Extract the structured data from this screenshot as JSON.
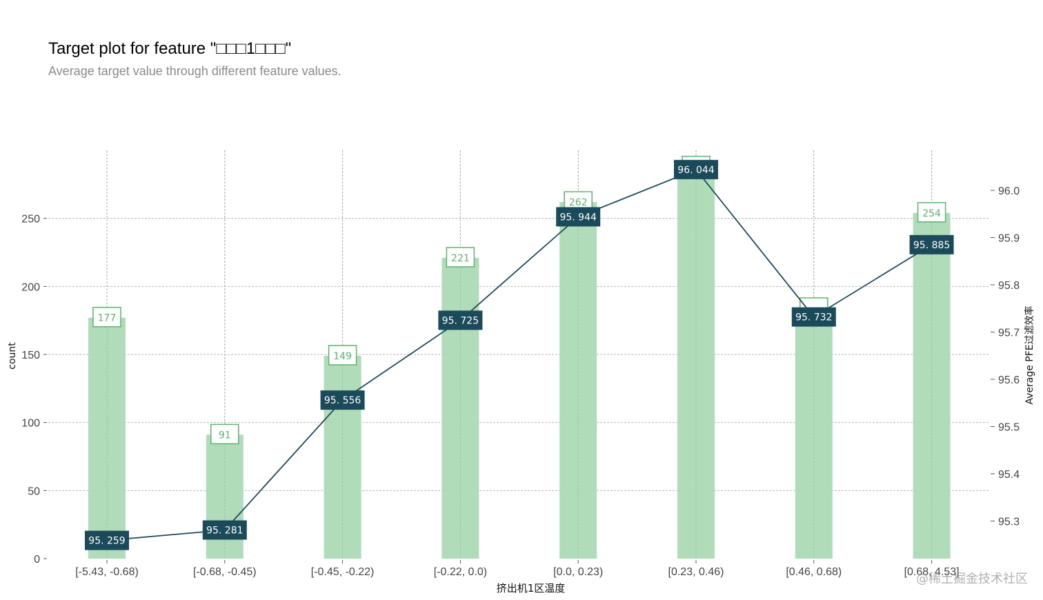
{
  "header": {
    "title": "Target plot for feature \"□□□1□□□\"",
    "subtitle": "Average target value through different feature values."
  },
  "watermark": "@稀土掘金技术社区",
  "chart_data": {
    "type": "bar",
    "categories": [
      "[-5.43, -0.68)",
      "[-0.68, -0.45)",
      "[-0.45, -0.22)",
      "[-0.22, 0.0)",
      "[0.0, 0.23)",
      "[0.23, 0.46)",
      "[0.46, 0.68)",
      "[0.68, 4.53]"
    ],
    "xlabel": "挤出机1区温度",
    "grid": true,
    "series": [
      {
        "type": "bar",
        "axis": "left",
        "values": [
          177,
          91,
          149,
          221,
          262,
          288,
          184,
          254
        ],
        "labels": [
          "177",
          "91",
          "149",
          "221",
          "262",
          "",
          "",
          "254"
        ],
        "color": "#acdab6",
        "label_color": "#5cb36c"
      },
      {
        "type": "line",
        "axis": "right",
        "values": [
          95.259,
          95.281,
          95.556,
          95.725,
          95.944,
          96.044,
          95.732,
          95.885
        ],
        "labels": [
          "95. 259",
          "95. 281",
          "95. 556",
          "95. 725",
          "95. 944",
          "96. 044",
          "95. 732",
          "95. 885"
        ],
        "color": "#1b4a5a"
      }
    ],
    "y_left": {
      "label": "count",
      "range": [
        0,
        300
      ],
      "ticks": [
        0,
        50,
        100,
        150,
        200,
        250
      ]
    },
    "y_right": {
      "label": "Average  PFE过滤效率",
      "range": [
        95.22,
        96.07
      ],
      "ticks": [
        95.3,
        95.4,
        95.5,
        95.6,
        95.7,
        95.8,
        95.9,
        96.0
      ]
    }
  }
}
